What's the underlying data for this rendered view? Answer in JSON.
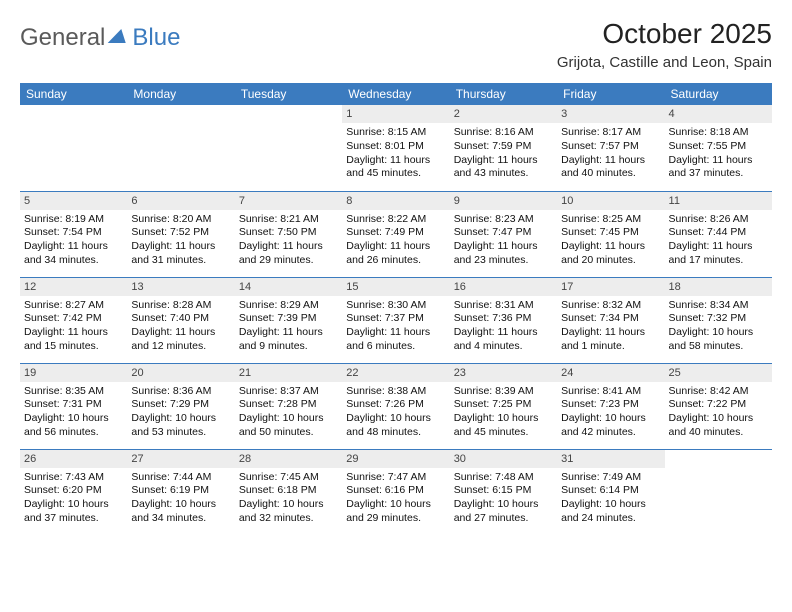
{
  "logo": {
    "general": "General",
    "blue": "Blue"
  },
  "title": "October 2025",
  "location": "Grijota, Castille and Leon, Spain",
  "colors": {
    "header_bg": "#3b7bbf",
    "header_text": "#ffffff",
    "daynum_bg": "#ededed",
    "border": "#3b7bbf",
    "logo_gray": "#5a5a5a",
    "logo_blue": "#3b7bbf"
  },
  "weekdays": [
    "Sunday",
    "Monday",
    "Tuesday",
    "Wednesday",
    "Thursday",
    "Friday",
    "Saturday"
  ],
  "weeks": [
    [
      null,
      null,
      null,
      {
        "n": "1",
        "sr": "8:15 AM",
        "ss": "8:01 PM",
        "dl": "11 hours and 45 minutes."
      },
      {
        "n": "2",
        "sr": "8:16 AM",
        "ss": "7:59 PM",
        "dl": "11 hours and 43 minutes."
      },
      {
        "n": "3",
        "sr": "8:17 AM",
        "ss": "7:57 PM",
        "dl": "11 hours and 40 minutes."
      },
      {
        "n": "4",
        "sr": "8:18 AM",
        "ss": "7:55 PM",
        "dl": "11 hours and 37 minutes."
      }
    ],
    [
      {
        "n": "5",
        "sr": "8:19 AM",
        "ss": "7:54 PM",
        "dl": "11 hours and 34 minutes."
      },
      {
        "n": "6",
        "sr": "8:20 AM",
        "ss": "7:52 PM",
        "dl": "11 hours and 31 minutes."
      },
      {
        "n": "7",
        "sr": "8:21 AM",
        "ss": "7:50 PM",
        "dl": "11 hours and 29 minutes."
      },
      {
        "n": "8",
        "sr": "8:22 AM",
        "ss": "7:49 PM",
        "dl": "11 hours and 26 minutes."
      },
      {
        "n": "9",
        "sr": "8:23 AM",
        "ss": "7:47 PM",
        "dl": "11 hours and 23 minutes."
      },
      {
        "n": "10",
        "sr": "8:25 AM",
        "ss": "7:45 PM",
        "dl": "11 hours and 20 minutes."
      },
      {
        "n": "11",
        "sr": "8:26 AM",
        "ss": "7:44 PM",
        "dl": "11 hours and 17 minutes."
      }
    ],
    [
      {
        "n": "12",
        "sr": "8:27 AM",
        "ss": "7:42 PM",
        "dl": "11 hours and 15 minutes."
      },
      {
        "n": "13",
        "sr": "8:28 AM",
        "ss": "7:40 PM",
        "dl": "11 hours and 12 minutes."
      },
      {
        "n": "14",
        "sr": "8:29 AM",
        "ss": "7:39 PM",
        "dl": "11 hours and 9 minutes."
      },
      {
        "n": "15",
        "sr": "8:30 AM",
        "ss": "7:37 PM",
        "dl": "11 hours and 6 minutes."
      },
      {
        "n": "16",
        "sr": "8:31 AM",
        "ss": "7:36 PM",
        "dl": "11 hours and 4 minutes."
      },
      {
        "n": "17",
        "sr": "8:32 AM",
        "ss": "7:34 PM",
        "dl": "11 hours and 1 minute."
      },
      {
        "n": "18",
        "sr": "8:34 AM",
        "ss": "7:32 PM",
        "dl": "10 hours and 58 minutes."
      }
    ],
    [
      {
        "n": "19",
        "sr": "8:35 AM",
        "ss": "7:31 PM",
        "dl": "10 hours and 56 minutes."
      },
      {
        "n": "20",
        "sr": "8:36 AM",
        "ss": "7:29 PM",
        "dl": "10 hours and 53 minutes."
      },
      {
        "n": "21",
        "sr": "8:37 AM",
        "ss": "7:28 PM",
        "dl": "10 hours and 50 minutes."
      },
      {
        "n": "22",
        "sr": "8:38 AM",
        "ss": "7:26 PM",
        "dl": "10 hours and 48 minutes."
      },
      {
        "n": "23",
        "sr": "8:39 AM",
        "ss": "7:25 PM",
        "dl": "10 hours and 45 minutes."
      },
      {
        "n": "24",
        "sr": "8:41 AM",
        "ss": "7:23 PM",
        "dl": "10 hours and 42 minutes."
      },
      {
        "n": "25",
        "sr": "8:42 AM",
        "ss": "7:22 PM",
        "dl": "10 hours and 40 minutes."
      }
    ],
    [
      {
        "n": "26",
        "sr": "7:43 AM",
        "ss": "6:20 PM",
        "dl": "10 hours and 37 minutes."
      },
      {
        "n": "27",
        "sr": "7:44 AM",
        "ss": "6:19 PM",
        "dl": "10 hours and 34 minutes."
      },
      {
        "n": "28",
        "sr": "7:45 AM",
        "ss": "6:18 PM",
        "dl": "10 hours and 32 minutes."
      },
      {
        "n": "29",
        "sr": "7:47 AM",
        "ss": "6:16 PM",
        "dl": "10 hours and 29 minutes."
      },
      {
        "n": "30",
        "sr": "7:48 AM",
        "ss": "6:15 PM",
        "dl": "10 hours and 27 minutes."
      },
      {
        "n": "31",
        "sr": "7:49 AM",
        "ss": "6:14 PM",
        "dl": "10 hours and 24 minutes."
      },
      null
    ]
  ],
  "labels": {
    "sunrise": "Sunrise: ",
    "sunset": "Sunset: ",
    "daylight": "Daylight: "
  }
}
